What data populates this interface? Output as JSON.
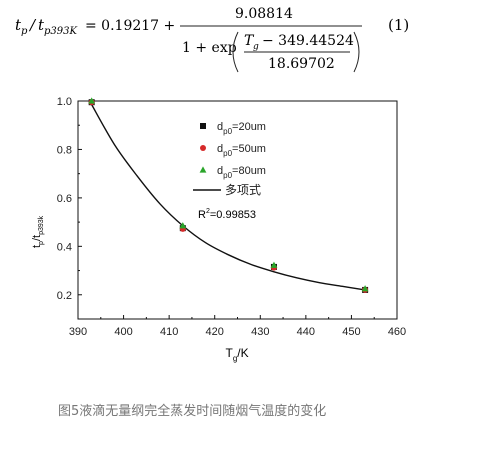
{
  "formula": {
    "lhs_t1": "t",
    "lhs_s1": "p",
    "lhs_sep": "/",
    "lhs_t2": "t",
    "lhs_s2": "p393K",
    "eq": "= 0.19217 +",
    "numerator": "9.08814",
    "den_prefix": "1 + exp",
    "inner_T": "T",
    "inner_Ts": "g",
    "inner_rest": "− 349.44524",
    "inner_den": "18.69702",
    "number": "(1)"
  },
  "chart_data": {
    "type": "scatter",
    "xlabel_main": "T",
    "xlabel_sub": "g",
    "xlabel_unit": "/K",
    "ylabel_main": "t",
    "ylabel_sub1": "p",
    "ylabel_mid": "/t",
    "ylabel_sub2": "p393k",
    "xlim": [
      390,
      460
    ],
    "ylim": [
      0.1,
      1.0
    ],
    "xticks": [
      390,
      400,
      410,
      420,
      430,
      440,
      450,
      460
    ],
    "xtick_labels": [
      "390",
      "400",
      "410",
      "420",
      "430",
      "440",
      "450",
      "460"
    ],
    "yticks": [
      0.2,
      0.4,
      0.6,
      0.8,
      1.0
    ],
    "ytick_labels": [
      "0.2",
      "0.4",
      "0.6",
      "0.8",
      "1.0"
    ],
    "grid": false,
    "legend_position": "top-right",
    "series": [
      {
        "name_main": "d",
        "name_sub": "p0",
        "name_rest": "=20um",
        "marker": "square",
        "color": "#111111",
        "x": [
          393,
          413,
          433,
          453
        ],
        "y": [
          0.995,
          0.475,
          0.315,
          0.22
        ]
      },
      {
        "name_main": "d",
        "name_sub": "p0",
        "name_rest": "=50um",
        "marker": "circle",
        "color": "#d62a2a",
        "x": [
          393,
          413,
          433,
          453
        ],
        "y": [
          0.995,
          0.472,
          0.312,
          0.22
        ]
      },
      {
        "name_main": "d",
        "name_sub": "p0",
        "name_rest": "=80um",
        "marker": "triangle",
        "color": "#2aa52a",
        "x": [
          393,
          413,
          433,
          453
        ],
        "y": [
          1.0,
          0.485,
          0.322,
          0.225
        ]
      }
    ],
    "fit": {
      "name": "多项式",
      "color": "#111111",
      "x": [
        393,
        398,
        403,
        408,
        413,
        418,
        423,
        428,
        433,
        438,
        443,
        448,
        453
      ],
      "y": [
        0.985,
        0.82,
        0.69,
        0.575,
        0.485,
        0.415,
        0.365,
        0.325,
        0.295,
        0.27,
        0.25,
        0.235,
        0.22
      ]
    },
    "r2_main": "R",
    "r2_sup": "2",
    "r2_rest": "=0.99853"
  },
  "caption": "图5液滴无量纲完全蒸发时间随烟气温度的变化"
}
